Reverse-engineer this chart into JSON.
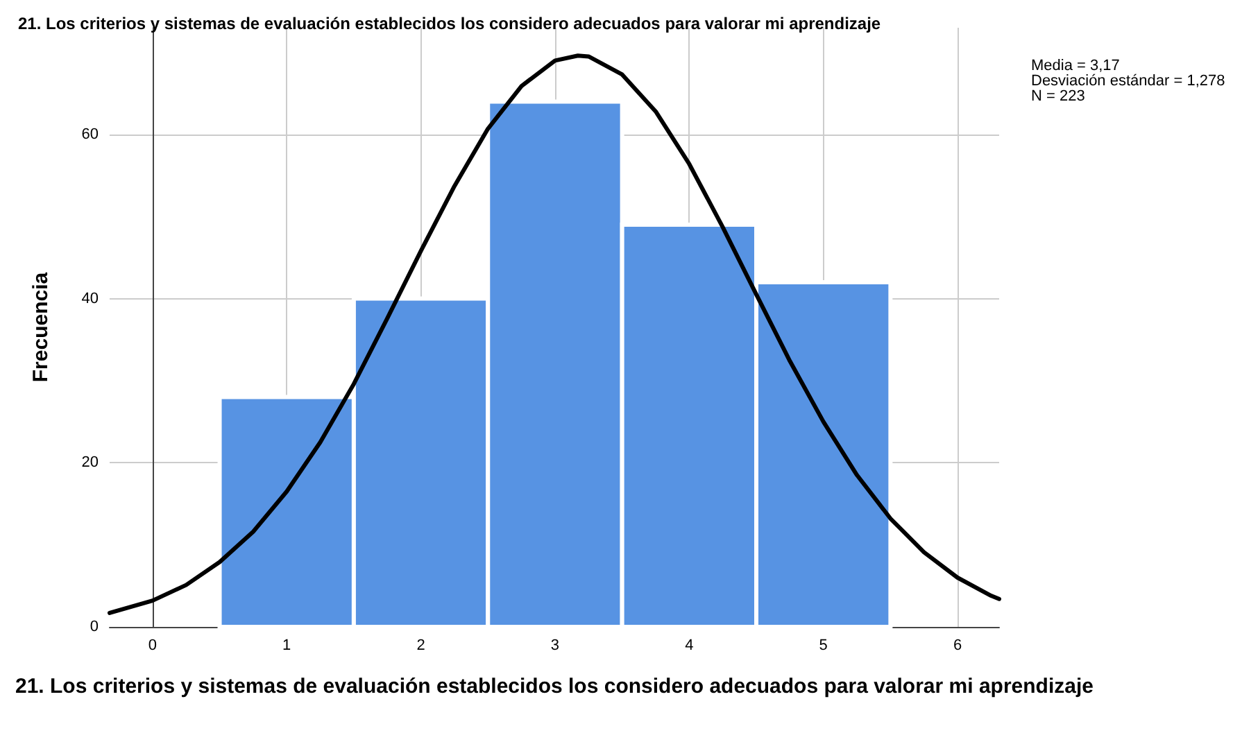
{
  "chart_data": {
    "type": "histogram",
    "title": "21. Los criterios y sistemas de evaluación establecidos los considero adecuados para valorar mi aprendizaje",
    "xlabel": "21. Los criterios y sistemas de evaluación establecidos los considero adecuados para valorar mi aprendizaje",
    "ylabel": "Frecuencia",
    "bins": [
      0.5,
      1.5,
      2.5,
      3.5,
      4.5,
      5.5
    ],
    "values": [
      28,
      40,
      64,
      49,
      42
    ],
    "color": "#5793e3",
    "series": [
      {
        "type": "line",
        "color": "#000000",
        "x": [
          -0.32,
          0,
          0.25,
          0.5,
          0.75,
          1,
          1.25,
          1.5,
          1.75,
          2,
          2.25,
          2.5,
          2.75,
          3,
          3.17,
          3.25,
          3.5,
          3.75,
          4,
          4.25,
          4.5,
          4.75,
          5,
          5.25,
          5.5,
          5.75,
          6,
          6.25,
          6.31
        ],
        "values": [
          1.7,
          3.2,
          5.1,
          7.9,
          11.6,
          16.5,
          22.5,
          29.6,
          37.6,
          45.8,
          53.7,
          60.7,
          65.9,
          69.0,
          69.6,
          69.5,
          67.3,
          62.8,
          56.4,
          48.7,
          40.5,
          32.4,
          25.0,
          18.5,
          13.2,
          9.1,
          6.0,
          3.8,
          3.4
        ]
      }
    ],
    "annotations": [
      "Media = 3,17",
      "Desviación estándar = 1,278",
      "N = 223"
    ],
    "xlim": [
      -0.32,
      6.31
    ],
    "xticks": [
      0,
      1,
      2,
      3,
      4,
      5,
      6
    ],
    "ylim": [
      0,
      73
    ],
    "yticks": [
      0,
      20,
      40,
      60
    ],
    "grid": true,
    "marker": "none",
    "line_style": "solid"
  }
}
